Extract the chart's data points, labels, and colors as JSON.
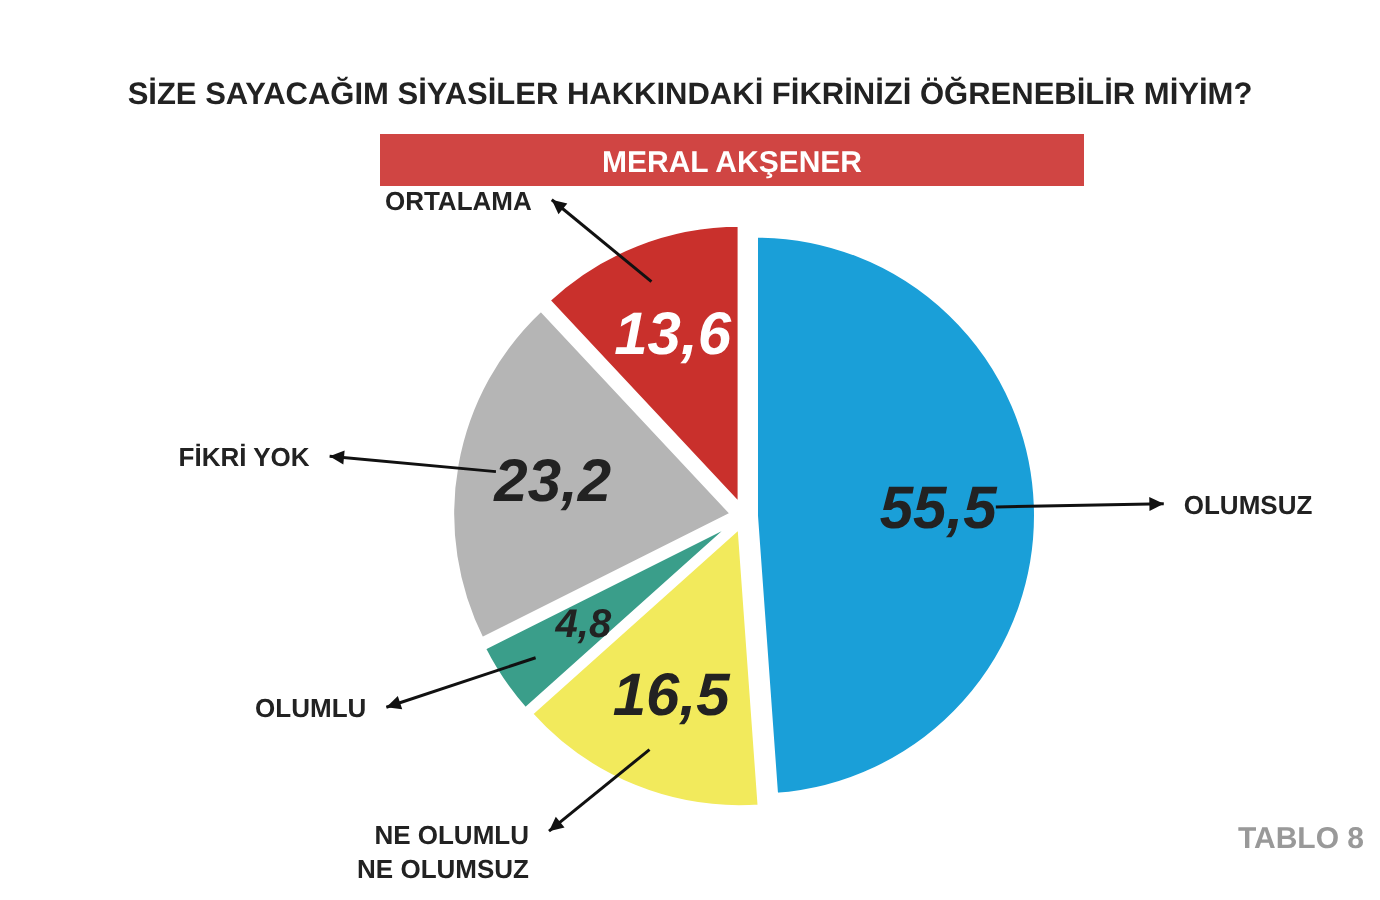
{
  "chart_data": {
    "type": "pie",
    "title": "SİZE SAYACAĞIM SİYASİLER HAKKINDAKİ FİKRİNİZİ ÖĞRENEBİLİR MİYİM?",
    "subtitle": "MERAL AKŞENER",
    "categories": [
      "OLUMSUZ",
      "NE OLUMLU NE OLUMSUZ",
      "OLUMLU",
      "FİKRİ YOK",
      "ORTALAMA"
    ],
    "values": [
      55.5,
      16.5,
      4.8,
      23.2,
      13.6
    ],
    "value_labels": [
      "55,5",
      "16,5",
      "4,8",
      "23,2",
      "13,6"
    ],
    "colors": [
      "#1a9fd8",
      "#f2ea5c",
      "#3a9e8a",
      "#b5b5b5",
      "#c9302c"
    ],
    "annotations": [
      "TABLO 8"
    ]
  }
}
